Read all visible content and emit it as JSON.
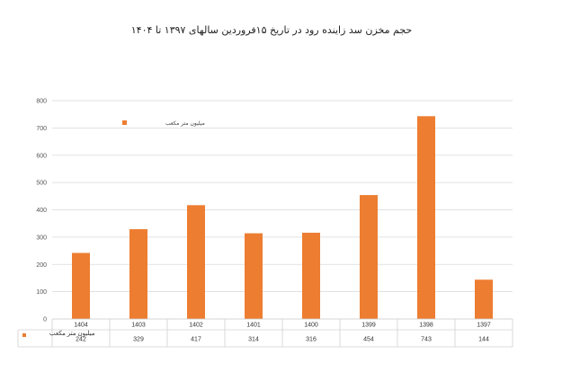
{
  "chart_data": {
    "type": "bar",
    "title": "حجم مخزن سد زاینده رود در تاریخ ۱۵فروردین سالهای ۱۳۹۷ تا ۱۴۰۴",
    "categories": [
      "1404",
      "1403",
      "1402",
      "1401",
      "1400",
      "1399",
      "1398",
      "1397"
    ],
    "series": [
      {
        "name": "میلیون متر مکعب",
        "values": [
          242,
          329,
          417,
          314,
          316,
          454,
          743,
          144
        ],
        "color": "#ED7D31"
      }
    ],
    "ylim": [
      0,
      800
    ],
    "yticks": [
      0,
      100,
      200,
      300,
      400,
      500,
      600,
      700,
      800
    ],
    "grid": true,
    "legend_position": "top-left",
    "data_table": true,
    "data_table_series_label": "میلیون متر مکعب"
  }
}
